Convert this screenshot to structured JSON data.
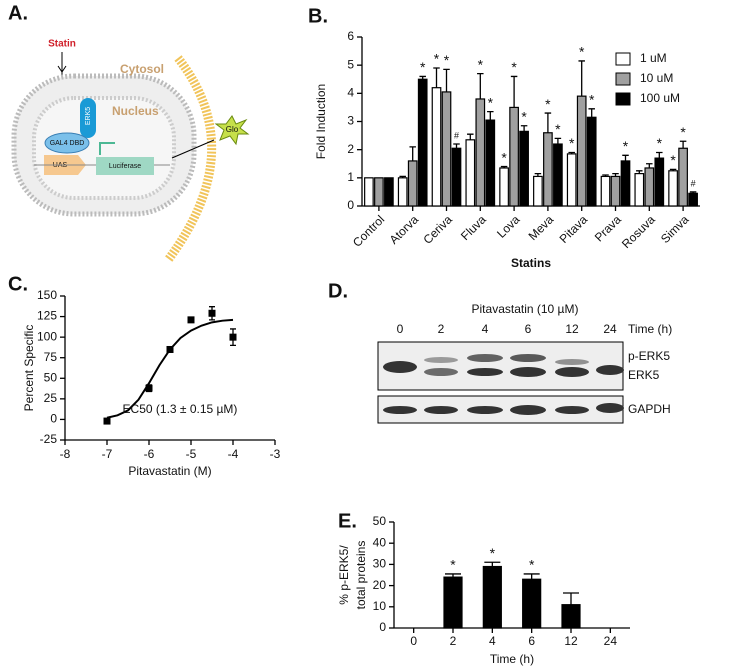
{
  "diagram": {
    "panel": "A.",
    "statin": "Statin",
    "cytosol": "Cytosol",
    "nucleus": "Nucleus",
    "erk5": "ERK5",
    "gal4": "GAL4 DBD",
    "uas": "UAS",
    "luciferase": "Luciferase",
    "glo": "Glo"
  },
  "blot": {
    "panel": "D.",
    "treatment": "Pitavastatin (10 µM)",
    "lanes": [
      "0",
      "2",
      "4",
      "6",
      "12",
      "24"
    ],
    "lane_axis": "Time (h)",
    "bands": [
      "p-ERK5",
      "ERK5",
      "GAPDH"
    ]
  },
  "chart_data": [
    {
      "type": "bar",
      "panel": "B.",
      "y_label": "Fold Induction",
      "x_label": "Statins",
      "categories": [
        "Control",
        "Atorva",
        "Ceriva",
        "Fluva",
        "Lova",
        "Meva",
        "Pitava",
        "Prava",
        "Rosuva",
        "Simva"
      ],
      "series": [
        {
          "name": "1 uM",
          "color": "#ffffff",
          "values": [
            1,
            1.0,
            4.2,
            2.35,
            1.35,
            1.05,
            1.85,
            1.05,
            1.15,
            1.25
          ],
          "errors": [
            0,
            0.05,
            0.7,
            0.2,
            0.05,
            0.1,
            0.05,
            0.05,
            0.1,
            0.05
          ],
          "annotations": [
            null,
            null,
            "*",
            null,
            "*",
            null,
            "*",
            null,
            null,
            "*"
          ]
        },
        {
          "name": "10 uM",
          "color": "#a0a0a0",
          "values": [
            1,
            1.6,
            4.05,
            3.8,
            3.5,
            2.6,
            3.9,
            1.05,
            1.35,
            2.05
          ],
          "errors": [
            0,
            0.5,
            0.8,
            0.9,
            1.1,
            0.7,
            1.25,
            0.1,
            0.15,
            0.25
          ],
          "annotations": [
            null,
            null,
            "*",
            "*",
            "*",
            "*",
            "*",
            null,
            null,
            "*"
          ]
        },
        {
          "name": "100 uM",
          "color": "#000000",
          "values": [
            1,
            4.5,
            2.05,
            3.05,
            2.65,
            2.2,
            3.15,
            1.6,
            1.7,
            0.45
          ],
          "errors": [
            0,
            0.1,
            0.15,
            0.3,
            0.2,
            0.2,
            0.3,
            0.2,
            0.2,
            0.05
          ],
          "annotations": [
            null,
            "*",
            "#",
            "*",
            "*",
            "*",
            "*",
            "*",
            "*",
            "#"
          ]
        }
      ],
      "ylim": [
        0,
        6
      ],
      "yticks": [
        0,
        1,
        2,
        3,
        4,
        5,
        6
      ],
      "legend": "upper right"
    },
    {
      "type": "scatter",
      "panel": "C.",
      "y_label": "Percent Specific",
      "x_label": "Pitavastatin (M)",
      "annotation": "EC50 (1.3 ± 0.15 µM)",
      "color": "#000000",
      "x": [
        -7,
        -6,
        -5.5,
        -5,
        -4.5,
        -4
      ],
      "values": [
        -2,
        38,
        85,
        121,
        129,
        100
      ],
      "errors": [
        2,
        4,
        2,
        2,
        8,
        10
      ],
      "fit": {
        "x": [
          -7,
          -6.75,
          -6.5,
          -6.25,
          -6,
          -5.75,
          -5.5,
          -5.25,
          -5,
          -4.75,
          -4.5,
          -4.25,
          -4
        ],
        "y": [
          2,
          5,
          11,
          24,
          44,
          66,
          85,
          99,
          108,
          114,
          118,
          120,
          121
        ]
      },
      "xlim": [
        -8,
        -3
      ],
      "xticks": [
        -8,
        -7,
        -6,
        -5,
        -4,
        -3
      ],
      "ylim": [
        -25,
        150
      ],
      "yticks": [
        -25,
        0,
        25,
        50,
        75,
        100,
        125,
        150
      ]
    },
    {
      "type": "bar",
      "panel": "E.",
      "y_label": [
        "% p-ERK5/",
        "total proteins"
      ],
      "x_label": "Time (h)",
      "color": "#000000",
      "categories": [
        "0",
        "2",
        "4",
        "6",
        "12",
        "24"
      ],
      "values": [
        0,
        24,
        29,
        23,
        11,
        0
      ],
      "errors": [
        0,
        1.5,
        2,
        2.5,
        5.5,
        0
      ],
      "annotations": [
        null,
        "*",
        "*",
        "*",
        null,
        null
      ],
      "ylim": [
        0,
        50
      ],
      "yticks": [
        0,
        10,
        20,
        30,
        40,
        50
      ]
    }
  ]
}
